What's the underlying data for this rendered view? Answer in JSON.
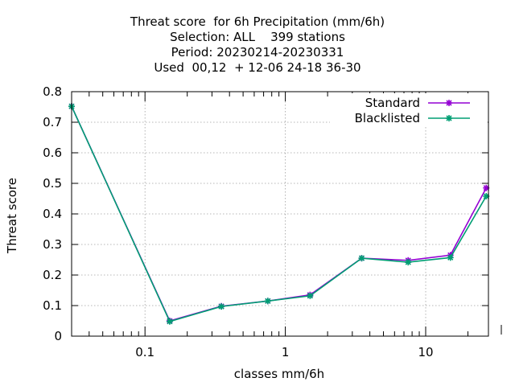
{
  "chart_data": {
    "type": "line",
    "title_lines": [
      "Threat score  for 6h Precipitation (mm/6h)",
      "Selection: ALL    399 stations",
      "Period: 20230214-20230331",
      "Used  00,12  + 12-06 24-18 36-30"
    ],
    "xlabel": "classes mm/6h",
    "ylabel": "Threat score",
    "x_scale": "log",
    "xlim": [
      0.03,
      28
    ],
    "ylim": [
      0,
      0.8
    ],
    "x_ticks": [
      0.1,
      1,
      10
    ],
    "x_tick_labels": [
      "0.1",
      "1",
      "10"
    ],
    "y_ticks": [
      0,
      0.1,
      0.2,
      0.3,
      0.4,
      0.5,
      0.6,
      0.7,
      0.8
    ],
    "y_tick_labels": [
      "0",
      "0.1",
      "0.2",
      "0.3",
      "0.4",
      "0.5",
      "0.6",
      "0.7",
      "0.8"
    ],
    "grid": true,
    "legend_position": "top-right",
    "series": [
      {
        "name": "Standard",
        "color": "#9400d3",
        "x": [
          0.03,
          0.15,
          0.35,
          0.75,
          1.5,
          3.5,
          7.5,
          15,
          27
        ],
        "y": [
          0.752,
          0.05,
          0.098,
          0.115,
          0.135,
          0.255,
          0.248,
          0.265,
          0.485
        ]
      },
      {
        "name": "Blacklisted",
        "color": "#009e73",
        "x": [
          0.03,
          0.15,
          0.35,
          0.75,
          1.5,
          3.5,
          7.5,
          15,
          27
        ],
        "y": [
          0.752,
          0.048,
          0.097,
          0.115,
          0.132,
          0.255,
          0.242,
          0.257,
          0.458
        ]
      }
    ]
  }
}
